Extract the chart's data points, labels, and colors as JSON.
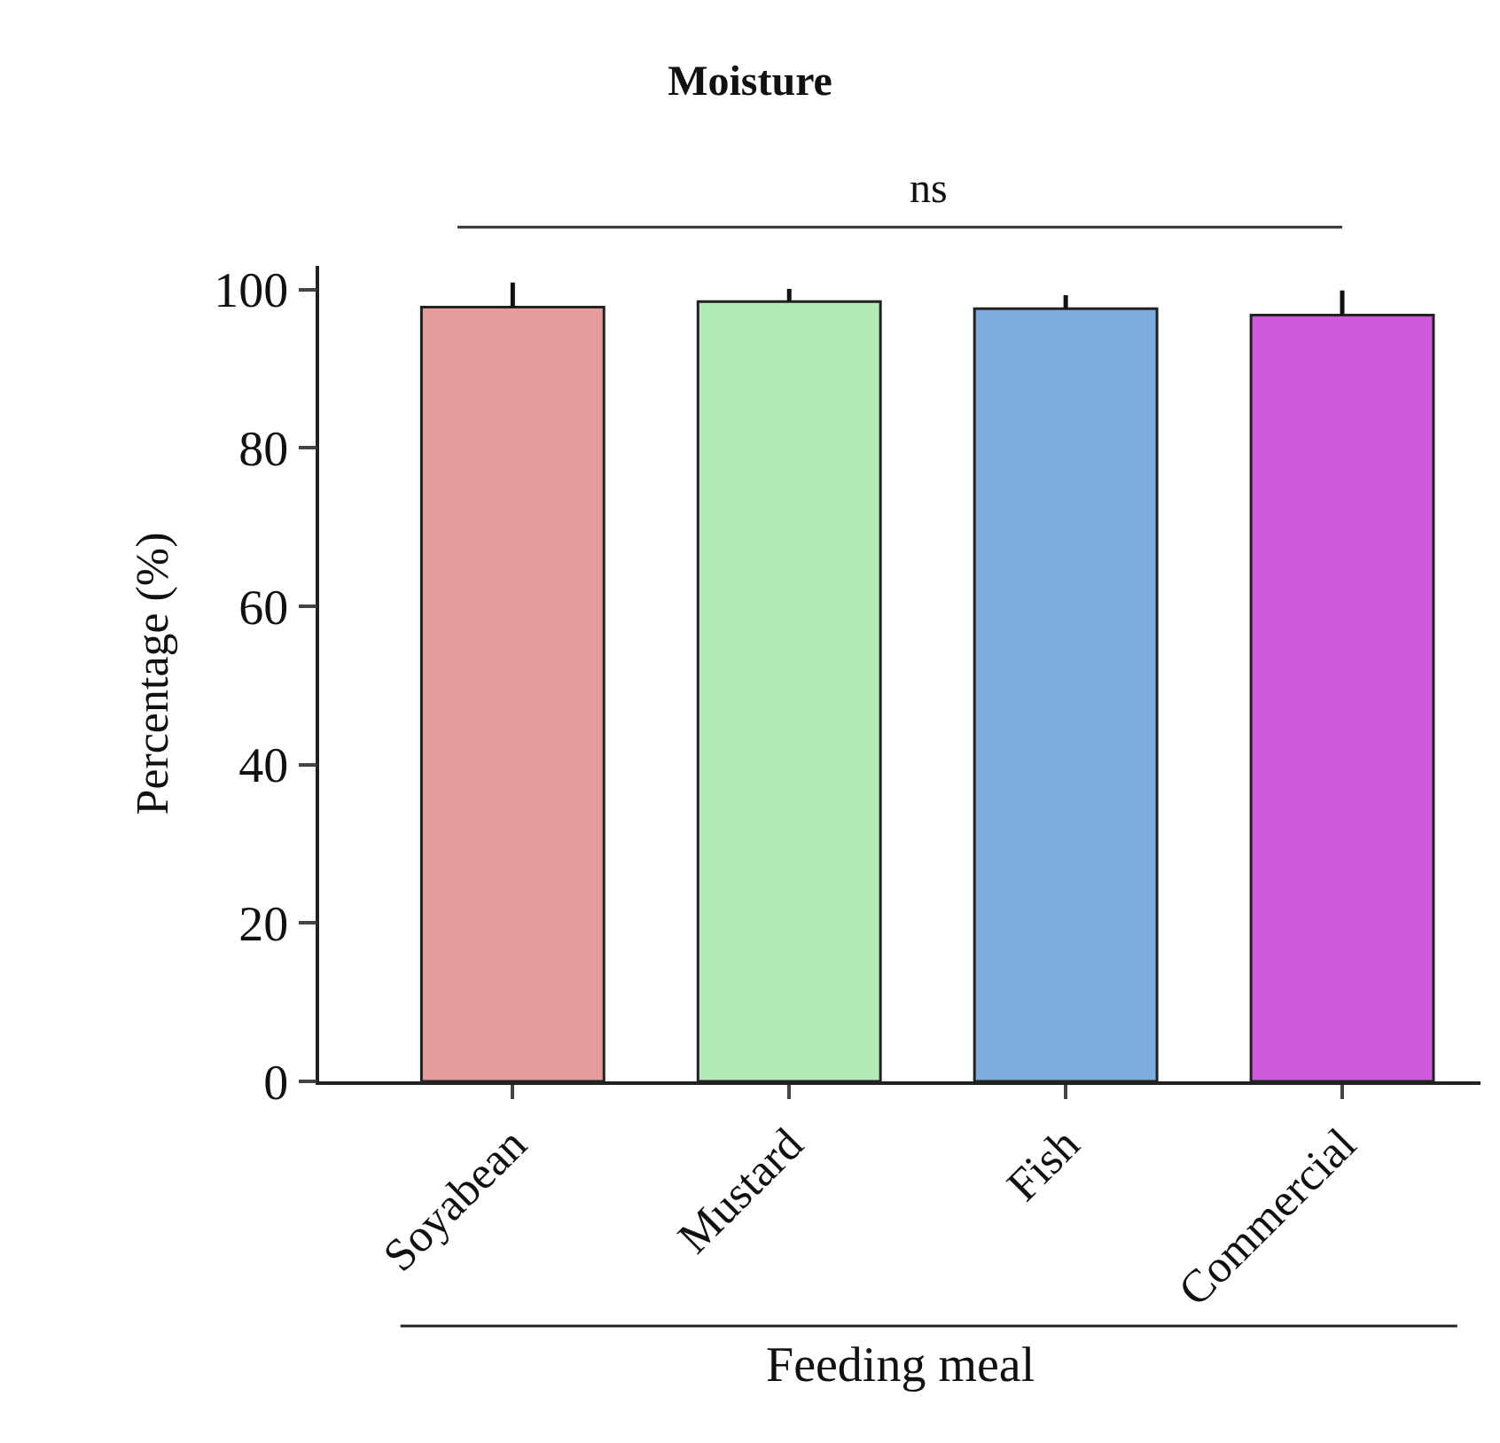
{
  "chart_data": {
    "type": "bar",
    "title": "Moisture",
    "xlabel": "Feeding meal",
    "ylabel": "Percentage (%)",
    "categories": [
      "Soyabean",
      "Mustard",
      "Fish",
      "Commercial"
    ],
    "values": [
      97.8,
      98.5,
      97.6,
      96.8
    ],
    "colors": [
      "#e59c9c",
      "#b3ebb8",
      "#7eaee0",
      "#cf5ade"
    ],
    "errors": [
      [
        97.8,
        100.9
      ],
      [
        98.5,
        100.1
      ],
      [
        97.6,
        99.3
      ],
      [
        96.8,
        99.9
      ]
    ],
    "annotations": [
      "ns"
    ],
    "ylim": [
      0,
      103
    ],
    "yticks": [
      0,
      20,
      40,
      60,
      80,
      100
    ],
    "grid": false,
    "legend": false
  }
}
